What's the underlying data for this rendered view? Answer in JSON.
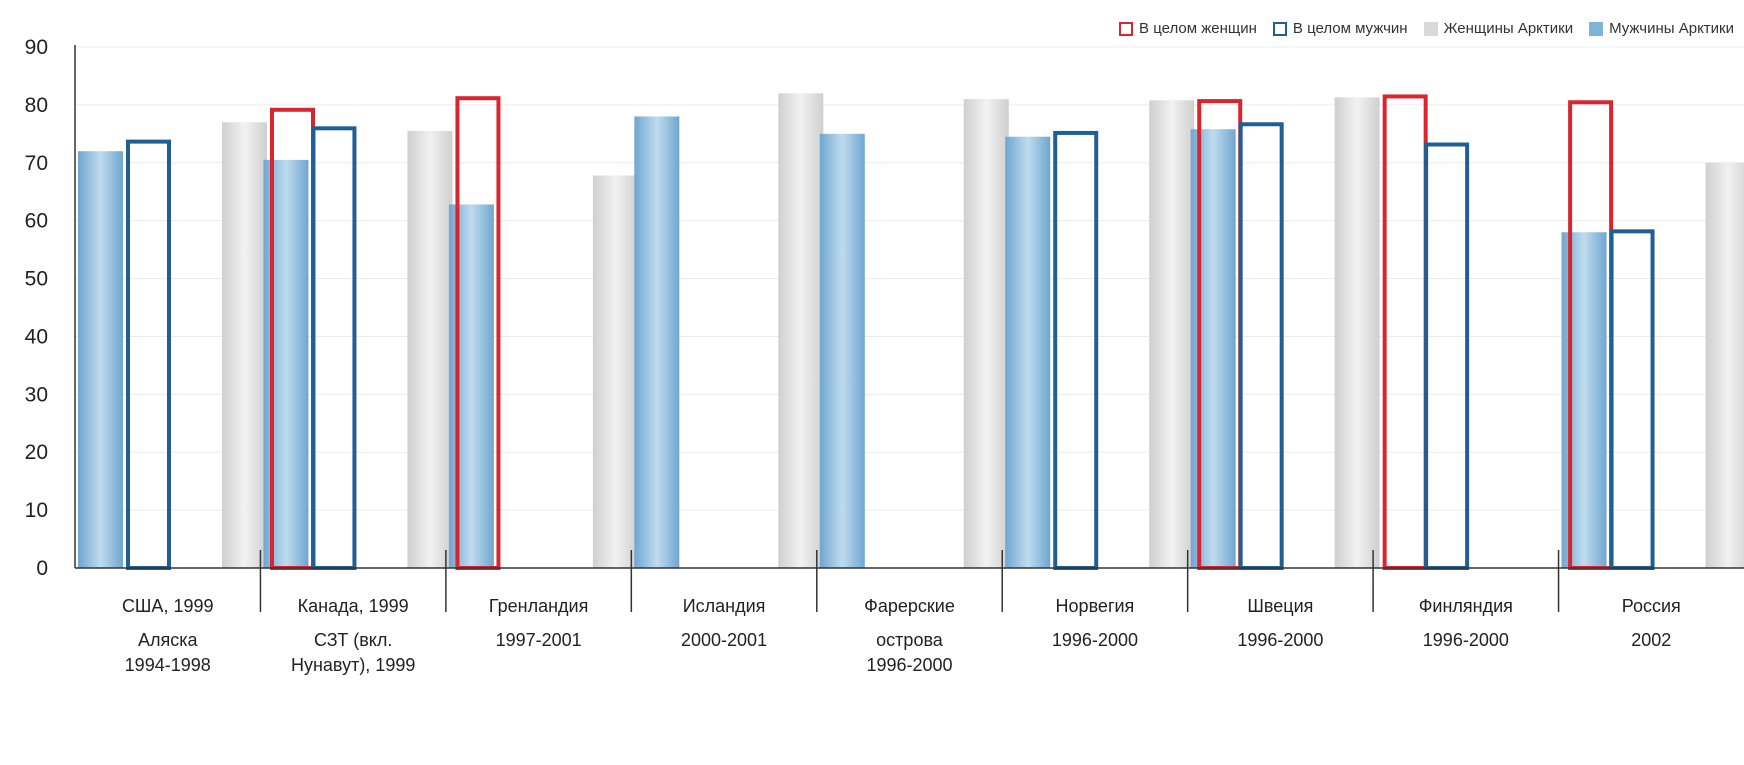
{
  "chart_data": {
    "type": "bar",
    "ylim": [
      0,
      90
    ],
    "yticks": [
      0,
      10,
      20,
      30,
      40,
      50,
      60,
      70,
      80,
      90
    ],
    "grid": true,
    "legend_position": "top-right",
    "colors": {
      "total_women": "#d9252f",
      "total_men": "#1f5f95",
      "arctic_women": "#d9d9d9",
      "arctic_men": "#7fb3d8"
    },
    "legend": [
      {
        "key": "total_women",
        "label": "В целом женщин",
        "style": "outline"
      },
      {
        "key": "total_men",
        "label": "В целом мужчин",
        "style": "outline"
      },
      {
        "key": "arctic_women",
        "label": "Женщины Арктики",
        "style": "fill"
      },
      {
        "key": "arctic_men",
        "label": "Мужчины Арктики",
        "style": "fill"
      }
    ],
    "groups": [
      {
        "label_lines": [
          "США, 1999",
          "Аляска",
          "1994-1998"
        ],
        "bars": [
          {
            "series": "arctic_men",
            "value": 72
          },
          {
            "series": "total_men",
            "value": 74
          },
          {
            "series": "arctic_women",
            "value": 77
          },
          {
            "series": "total_women",
            "value": 79.5
          }
        ]
      },
      {
        "label_lines": [
          "Канада, 1999",
          "СЗТ (вкл.",
          "Нунавут), 1999"
        ],
        "bars": [
          {
            "series": "arctic_men",
            "value": 70.5
          },
          {
            "series": "total_men",
            "value": 76.3
          },
          {
            "series": "arctic_women",
            "value": 75.5
          },
          {
            "series": "total_women",
            "value": 81.5
          }
        ]
      },
      {
        "label_lines": [
          "Гренландия",
          "1997-2001"
        ],
        "bars": [
          {
            "series": "arctic_men",
            "value": 62.8
          },
          {
            "series": "arctic_women",
            "value": 67.8
          }
        ]
      },
      {
        "label_lines": [
          "Исландия",
          "2000-2001"
        ],
        "bars": [
          {
            "series": "arctic_men",
            "value": 78
          },
          {
            "series": "arctic_women",
            "value": 82
          }
        ]
      },
      {
        "label_lines": [
          "Фарерские",
          "острова",
          "1996-2000"
        ],
        "bars": [
          {
            "series": "arctic_men",
            "value": 75
          },
          {
            "series": "arctic_women",
            "value": 81
          }
        ]
      },
      {
        "label_lines": [
          "Норвегия",
          "1996-2000"
        ],
        "bars": [
          {
            "series": "arctic_men",
            "value": 74.5
          },
          {
            "series": "total_men",
            "value": 75.5
          },
          {
            "series": "arctic_women",
            "value": 80.8
          },
          {
            "series": "total_women",
            "value": 81
          }
        ]
      },
      {
        "label_lines": [
          "Швеция",
          "1996-2000"
        ],
        "bars": [
          {
            "series": "arctic_men",
            "value": 75.8
          },
          {
            "series": "total_men",
            "value": 77
          },
          {
            "series": "arctic_women",
            "value": 81.3
          },
          {
            "series": "total_women",
            "value": 81.8
          }
        ]
      },
      {
        "label_lines": [
          "Финляндия",
          "1996-2000"
        ],
        "bars": [
          {
            "series": "total_men",
            "value": 73.5
          },
          {
            "series": "total_women",
            "value": 80.8
          }
        ]
      },
      {
        "label_lines": [
          "Россия",
          "2002"
        ],
        "bars": [
          {
            "series": "arctic_men",
            "value": 58
          },
          {
            "series": "total_men",
            "value": 58.5
          },
          {
            "series": "arctic_women",
            "value": 70
          },
          {
            "series": "total_women",
            "value": 71.8
          }
        ]
      }
    ]
  }
}
